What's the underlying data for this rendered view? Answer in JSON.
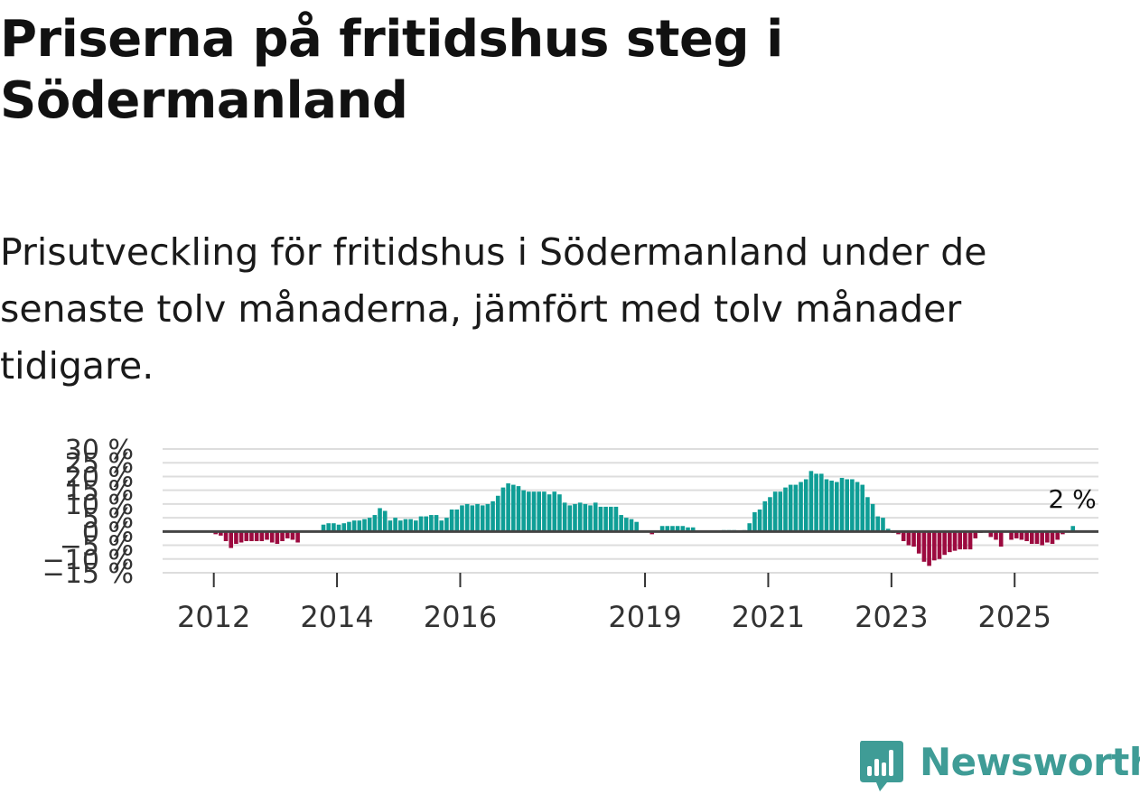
{
  "title": "Priserna på fritidshus steg i Södermanland",
  "subtitle": "Prisutveckling för fritidshus i Södermanland under de senaste tolv månaderna, jämfört med tolv månader tidigare.",
  "brand": {
    "name": "Newsworthy",
    "icon": "newsworthy-bar-chart-icon",
    "color": "#3f9c96"
  },
  "chart_data": {
    "type": "bar",
    "title": "",
    "xlabel": "",
    "ylabel": "",
    "ylim": [
      -15,
      30
    ],
    "y_ticks": [
      {
        "value": 30,
        "label": "30 %"
      },
      {
        "value": 25,
        "label": "25 %"
      },
      {
        "value": 20,
        "label": "20 %"
      },
      {
        "value": 15,
        "label": "15 %"
      },
      {
        "value": 10,
        "label": "10 %"
      },
      {
        "value": 5,
        "label": "5 %"
      },
      {
        "value": 0,
        "label": "0 %"
      },
      {
        "value": -5,
        "label": "−5 %"
      },
      {
        "value": -10,
        "label": "−10 %"
      },
      {
        "value": -15,
        "label": "−15 %"
      }
    ],
    "x_ticks": [
      {
        "label": "2012",
        "index": 1
      },
      {
        "label": "2014",
        "index": 25
      },
      {
        "label": "2016",
        "index": 49
      },
      {
        "label": "2019",
        "index": 85
      },
      {
        "label": "2021",
        "index": 109
      },
      {
        "label": "2023",
        "index": 133
      },
      {
        "label": "2025",
        "index": 157
      }
    ],
    "grid": true,
    "colors": {
      "positive": "#0f9e96",
      "negative": "#9c0a3f",
      "zero_line": "#444444",
      "grid": "#dddddd"
    },
    "last_value_label": "2 %",
    "start": "2011-12",
    "values": [
      0,
      -1,
      -1.5,
      -3.5,
      -6,
      -4.5,
      -4,
      -3.5,
      -3.5,
      -3.5,
      -3.5,
      -3,
      -4,
      -4.5,
      -3.5,
      -2.5,
      -3,
      -4,
      0,
      0,
      0,
      0,
      2.5,
      3,
      3,
      2.5,
      3,
      3.5,
      4,
      4,
      4.5,
      5,
      6,
      8.5,
      7.5,
      4,
      5,
      4,
      4.5,
      4.5,
      4,
      5.5,
      5.5,
      6,
      6,
      4,
      5,
      8,
      8,
      9.5,
      10,
      9.5,
      10,
      9.5,
      10,
      11,
      13,
      16,
      17.5,
      17,
      16.5,
      15,
      14.5,
      14.5,
      14.5,
      14.5,
      13.5,
      14.5,
      13.5,
      10.5,
      9.5,
      10,
      10.5,
      10,
      9.5,
      10.5,
      9,
      9,
      9,
      9,
      6,
      5,
      4.5,
      3.5,
      0,
      0,
      -1,
      0,
      2,
      2,
      2,
      2,
      2,
      1.5,
      1.5,
      0,
      0,
      0,
      0,
      0,
      0.5,
      0.5,
      0.5,
      0,
      0.5,
      3,
      7,
      8,
      11,
      12.5,
      14.5,
      14.5,
      16,
      17,
      17,
      18,
      19,
      22,
      21,
      21,
      19,
      18.5,
      18,
      19.5,
      19,
      19,
      18,
      17,
      12.5,
      10,
      5.5,
      5,
      1,
      -0.5,
      -1,
      -3.5,
      -5,
      -5.5,
      -8,
      -11,
      -12.5,
      -10.5,
      -10,
      -8.5,
      -7.5,
      -7,
      -6.5,
      -6.5,
      -6.5,
      -2.5,
      -0.5,
      0,
      -2,
      -3,
      -5.5,
      0,
      -3,
      -2.5,
      -3,
      -3.5,
      -4.5,
      -4.5,
      -5,
      -4,
      -4.5,
      -3,
      -1,
      0,
      2
    ]
  }
}
